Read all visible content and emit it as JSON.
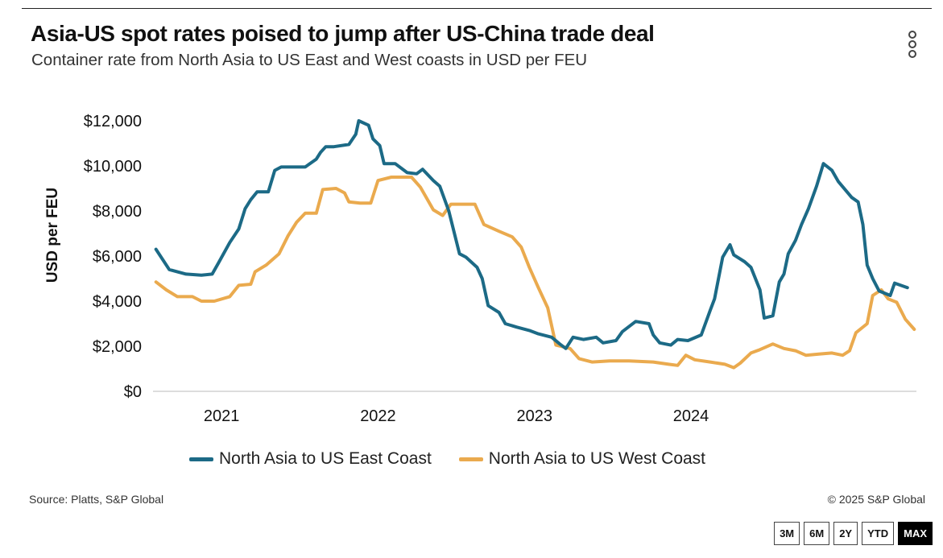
{
  "header": {
    "title": "Asia-US spot rates poised to jump after US-China trade deal",
    "subtitle": "Container rate from North Asia to US East and West coasts in USD per FEU"
  },
  "footer": {
    "source": "Source: Platts, S&P Global",
    "copyright": "© 2025 S&P Global"
  },
  "range_buttons": [
    {
      "label": "3M",
      "active": false
    },
    {
      "label": "6M",
      "active": false
    },
    {
      "label": "2Y",
      "active": false
    },
    {
      "label": "YTD",
      "active": false
    },
    {
      "label": "MAX",
      "active": true
    }
  ],
  "colors": {
    "east": "#1c6a86",
    "west": "#eaaa4e",
    "axis": "#bbbbbb"
  },
  "icons": {
    "menu": "vertical-ellipsis-icon"
  },
  "chart_data": {
    "type": "line",
    "ylabel": "USD per FEU",
    "xlabel": "",
    "ylim": [
      0,
      12000
    ],
    "xlim": [
      "2020-07-25",
      "2025-06-10"
    ],
    "y_ticks": [
      0,
      2000,
      4000,
      6000,
      8000,
      10000,
      12000
    ],
    "y_tick_labels": [
      "$0",
      "$2,000",
      "$4,000",
      "$6,000",
      "$8,000",
      "$10,000",
      "$12,000"
    ],
    "x_ticks": [
      "2021-01-01",
      "2022-01-01",
      "2023-01-01",
      "2024-01-01"
    ],
    "x_tick_labels": [
      "2021",
      "2022",
      "2023",
      "2024"
    ],
    "grid": false,
    "legend_position": "bottom",
    "series": [
      {
        "name": "North Asia to US East Coast",
        "color": "#1c6a86",
        "points": [
          [
            "2020-08-01",
            6300
          ],
          [
            "2020-09-01",
            5400
          ],
          [
            "2020-10-10",
            5200
          ],
          [
            "2020-11-15",
            5150
          ],
          [
            "2020-12-10",
            5200
          ],
          [
            "2020-12-25",
            5700
          ],
          [
            "2021-01-20",
            6600
          ],
          [
            "2021-02-10",
            7200
          ],
          [
            "2021-02-25",
            8100
          ],
          [
            "2021-03-10",
            8500
          ],
          [
            "2021-03-25",
            8850
          ],
          [
            "2021-04-20",
            8850
          ],
          [
            "2021-05-05",
            9800
          ],
          [
            "2021-05-20",
            9950
          ],
          [
            "2021-07-15",
            9950
          ],
          [
            "2021-08-10",
            10300
          ],
          [
            "2021-08-20",
            10600
          ],
          [
            "2021-09-01",
            10850
          ],
          [
            "2021-09-20",
            10850
          ],
          [
            "2021-10-25",
            10950
          ],
          [
            "2021-11-10",
            11400
          ],
          [
            "2021-11-17",
            12000
          ],
          [
            "2021-12-10",
            11800
          ],
          [
            "2021-12-20",
            11200
          ],
          [
            "2022-01-05",
            10900
          ],
          [
            "2022-01-15",
            10100
          ],
          [
            "2022-02-10",
            10100
          ],
          [
            "2022-03-10",
            9700
          ],
          [
            "2022-04-01",
            9650
          ],
          [
            "2022-04-15",
            9850
          ],
          [
            "2022-05-10",
            9350
          ],
          [
            "2022-05-25",
            9100
          ],
          [
            "2022-06-15",
            8000
          ],
          [
            "2022-07-10",
            6100
          ],
          [
            "2022-07-25",
            5950
          ],
          [
            "2022-08-20",
            5500
          ],
          [
            "2022-09-01",
            5000
          ],
          [
            "2022-09-15",
            3800
          ],
          [
            "2022-10-10",
            3500
          ],
          [
            "2022-10-25",
            3000
          ],
          [
            "2022-11-20",
            2850
          ],
          [
            "2022-12-20",
            2700
          ],
          [
            "2023-01-10",
            2550
          ],
          [
            "2023-02-10",
            2400
          ],
          [
            "2023-03-01",
            2100
          ],
          [
            "2023-03-15",
            1900
          ],
          [
            "2023-04-01",
            2400
          ],
          [
            "2023-04-25",
            2300
          ],
          [
            "2023-05-25",
            2400
          ],
          [
            "2023-06-10",
            2150
          ],
          [
            "2023-07-10",
            2250
          ],
          [
            "2023-07-25",
            2650
          ],
          [
            "2023-08-25",
            3100
          ],
          [
            "2023-09-25",
            3000
          ],
          [
            "2023-10-05",
            2500
          ],
          [
            "2023-10-20",
            2150
          ],
          [
            "2023-11-15",
            2050
          ],
          [
            "2023-12-01",
            2300
          ],
          [
            "2023-12-25",
            2250
          ],
          [
            "2024-01-25",
            2500
          ],
          [
            "2024-02-15",
            3600
          ],
          [
            "2024-02-25",
            4100
          ],
          [
            "2024-03-15",
            5950
          ],
          [
            "2024-04-01",
            6500
          ],
          [
            "2024-04-10",
            6050
          ],
          [
            "2024-05-05",
            5750
          ],
          [
            "2024-05-20",
            5500
          ],
          [
            "2024-06-10",
            4500
          ],
          [
            "2024-06-20",
            3250
          ],
          [
            "2024-07-10",
            3350
          ],
          [
            "2024-07-25",
            4850
          ],
          [
            "2024-08-05",
            5200
          ],
          [
            "2024-08-15",
            6100
          ],
          [
            "2024-09-01",
            6700
          ],
          [
            "2024-09-15",
            7400
          ],
          [
            "2024-10-01",
            8100
          ],
          [
            "2024-10-20",
            9100
          ],
          [
            "2024-11-05",
            10100
          ],
          [
            "2024-11-25",
            9800
          ],
          [
            "2024-12-10",
            9300
          ],
          [
            "2025-01-10",
            8600
          ],
          [
            "2025-01-25",
            8400
          ],
          [
            "2025-02-05",
            7400
          ],
          [
            "2025-02-15",
            5600
          ],
          [
            "2025-02-28",
            5000
          ],
          [
            "2025-03-15",
            4450
          ],
          [
            "2025-04-10",
            4250
          ],
          [
            "2025-04-20",
            4800
          ],
          [
            "2025-05-20",
            4600
          ]
        ]
      },
      {
        "name": "North Asia to US West Coast",
        "color": "#eaaa4e",
        "points": [
          [
            "2020-08-01",
            4850
          ],
          [
            "2020-08-25",
            4500
          ],
          [
            "2020-09-20",
            4200
          ],
          [
            "2020-10-25",
            4200
          ],
          [
            "2020-11-15",
            4000
          ],
          [
            "2020-12-15",
            4000
          ],
          [
            "2021-01-20",
            4200
          ],
          [
            "2021-02-10",
            4700
          ],
          [
            "2021-03-10",
            4750
          ],
          [
            "2021-03-20",
            5300
          ],
          [
            "2021-04-15",
            5600
          ],
          [
            "2021-05-15",
            6100
          ],
          [
            "2021-06-05",
            6900
          ],
          [
            "2021-06-25",
            7500
          ],
          [
            "2021-07-15",
            7900
          ],
          [
            "2021-08-10",
            7900
          ],
          [
            "2021-08-25",
            8950
          ],
          [
            "2021-09-25",
            9000
          ],
          [
            "2021-10-15",
            8800
          ],
          [
            "2021-10-25",
            8400
          ],
          [
            "2021-11-20",
            8350
          ],
          [
            "2021-12-15",
            8350
          ],
          [
            "2022-01-01",
            9350
          ],
          [
            "2022-02-01",
            9500
          ],
          [
            "2022-03-20",
            9500
          ],
          [
            "2022-04-10",
            9050
          ],
          [
            "2022-05-10",
            8050
          ],
          [
            "2022-06-01",
            7800
          ],
          [
            "2022-06-20",
            8300
          ],
          [
            "2022-08-15",
            8300
          ],
          [
            "2022-09-05",
            7400
          ],
          [
            "2022-10-10",
            7100
          ],
          [
            "2022-11-10",
            6850
          ],
          [
            "2022-12-01",
            6400
          ],
          [
            "2022-12-20",
            5500
          ],
          [
            "2023-01-10",
            4600
          ],
          [
            "2023-02-01",
            3700
          ],
          [
            "2023-02-20",
            2050
          ],
          [
            "2023-03-25",
            1900
          ],
          [
            "2023-04-15",
            1450
          ],
          [
            "2023-05-15",
            1300
          ],
          [
            "2023-06-25",
            1350
          ],
          [
            "2023-08-10",
            1350
          ],
          [
            "2023-10-05",
            1300
          ],
          [
            "2023-11-10",
            1200
          ],
          [
            "2023-12-01",
            1150
          ],
          [
            "2023-12-20",
            1600
          ],
          [
            "2024-01-10",
            1400
          ],
          [
            "2024-02-15",
            1300
          ],
          [
            "2024-03-20",
            1200
          ],
          [
            "2024-04-10",
            1050
          ],
          [
            "2024-04-25",
            1250
          ],
          [
            "2024-05-20",
            1700
          ],
          [
            "2024-06-10",
            1850
          ],
          [
            "2024-07-10",
            2100
          ],
          [
            "2024-08-05",
            1900
          ],
          [
            "2024-09-01",
            1800
          ],
          [
            "2024-09-25",
            1600
          ],
          [
            "2024-10-25",
            1650
          ],
          [
            "2024-11-25",
            1700
          ],
          [
            "2024-12-20",
            1600
          ],
          [
            "2025-01-05",
            1800
          ],
          [
            "2025-01-20",
            2600
          ],
          [
            "2025-02-15",
            3000
          ],
          [
            "2025-02-28",
            4250
          ],
          [
            "2025-03-20",
            4500
          ],
          [
            "2025-04-05",
            4100
          ],
          [
            "2025-04-25",
            3950
          ],
          [
            "2025-05-15",
            3200
          ],
          [
            "2025-06-05",
            2750
          ]
        ]
      }
    ]
  }
}
